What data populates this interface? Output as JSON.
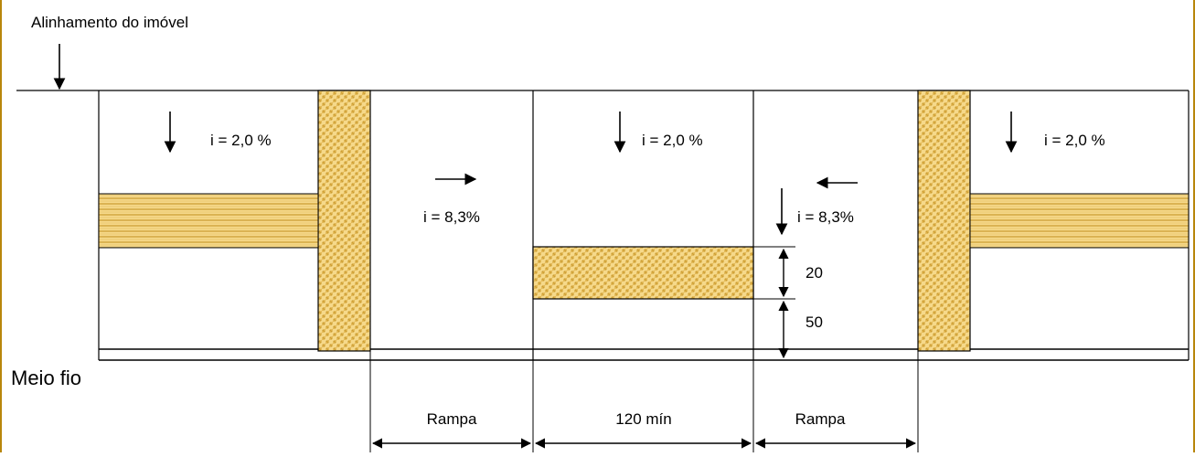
{
  "labels": {
    "property_alignment": "Alinhamento do imóvel",
    "curb": "Meio fio",
    "slope_left": "i = 2,0 %",
    "slope_center": "i = 2,0 %",
    "slope_right": "i = 2,0 %",
    "ramp_slope_left": "i = 8,3%",
    "ramp_slope_right": "i = 8,3%",
    "dim_20": "20",
    "dim_50": "50",
    "ramp_left": "Rampa",
    "width_min": "120 mín",
    "ramp_right": "Rampa"
  },
  "colors": {
    "line": "#000000",
    "tactile_fill": "#f6d98a",
    "tactile_pattern": "#c99a2e",
    "frame_border": "#b8860b"
  }
}
